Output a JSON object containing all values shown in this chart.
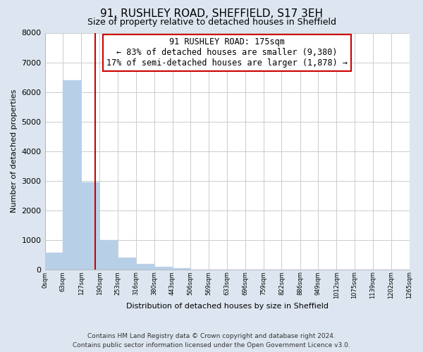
{
  "title": "91, RUSHLEY ROAD, SHEFFIELD, S17 3EH",
  "subtitle": "Size of property relative to detached houses in Sheffield",
  "xlabel": "Distribution of detached houses by size in Sheffield",
  "ylabel": "Number of detached properties",
  "bar_values": [
    560,
    6390,
    2950,
    980,
    390,
    175,
    90,
    50,
    0,
    0,
    0,
    0,
    0,
    0,
    0,
    0,
    0,
    0,
    0,
    0
  ],
  "bar_edges": [
    0,
    63,
    127,
    190,
    253,
    316,
    380,
    443,
    506,
    569,
    633,
    696,
    759,
    822,
    886,
    949,
    1012,
    1075,
    1139,
    1202,
    1265
  ],
  "tick_labels": [
    "0sqm",
    "63sqm",
    "127sqm",
    "190sqm",
    "253sqm",
    "316sqm",
    "380sqm",
    "443sqm",
    "506sqm",
    "569sqm",
    "633sqm",
    "696sqm",
    "759sqm",
    "822sqm",
    "886sqm",
    "949sqm",
    "1012sqm",
    "1075sqm",
    "1139sqm",
    "1202sqm",
    "1265sqm"
  ],
  "bar_color": "#b8cfe8",
  "bar_edgecolor": "#b8cfe8",
  "vline_x": 175,
  "vline_color": "#cc0000",
  "annotation_title": "91 RUSHLEY ROAD: 175sqm",
  "annotation_line1": "← 83% of detached houses are smaller (9,380)",
  "annotation_line2": "17% of semi-detached houses are larger (1,878) →",
  "box_facecolor": "#ffffff",
  "box_edgecolor": "#cc0000",
  "ylim": [
    0,
    8000
  ],
  "yticks": [
    0,
    1000,
    2000,
    3000,
    4000,
    5000,
    6000,
    7000,
    8000
  ],
  "footnote1": "Contains HM Land Registry data © Crown copyright and database right 2024.",
  "footnote2": "Contains public sector information licensed under the Open Government Licence v3.0.",
  "bg_color": "#dde6f0",
  "plot_bg_color": "#ffffff"
}
